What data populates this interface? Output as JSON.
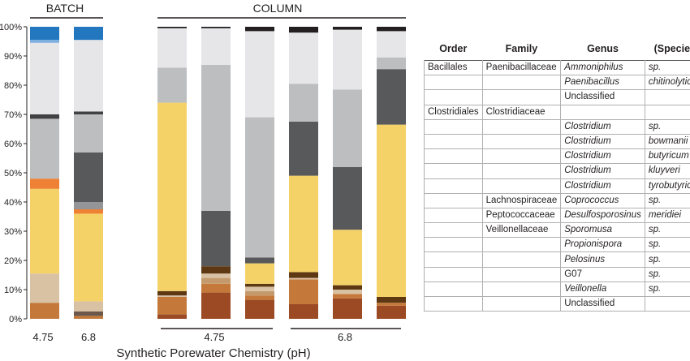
{
  "chart_data": {
    "type": "bar",
    "stacked": true,
    "xlabel": "Synthetic Porewater Chemistry (pH)",
    "ylim": [
      0,
      100
    ],
    "y_ticks": [
      "0%",
      "10%",
      "20%",
      "30%",
      "40%",
      "50%",
      "60%",
      "70%",
      "80%",
      "90%",
      "100%"
    ],
    "groups": [
      {
        "label": "BATCH",
        "sub_labels": [
          {
            "text": "4.75"
          },
          {
            "text": "6.8"
          }
        ]
      },
      {
        "label": "COLUMN",
        "sub_labels": [
          {
            "text": "4.75"
          },
          {
            "text": "6.8"
          }
        ]
      }
    ],
    "taxa": [
      {
        "order": "Bacillales",
        "family": "Paenibacillaceae",
        "genus": "Ammoniphilus",
        "species": "sp.",
        "color": "#2277bf",
        "genus_italic": true,
        "species_italic": true
      },
      {
        "order": "",
        "family": "",
        "genus": "Paenibacillus",
        "species": "chitinolyticus",
        "color": "#7fb0e0",
        "genus_italic": true,
        "species_italic": true
      },
      {
        "order": "",
        "family": "",
        "genus": "Unclassified",
        "species": "",
        "color": "#231f20",
        "genus_italic": false,
        "species_italic": false
      },
      {
        "order": "Clostridiales",
        "family": "Clostridiaceae",
        "genus": "",
        "species": "",
        "color": "",
        "genus_italic": false,
        "species_italic": false
      },
      {
        "order": "",
        "family": "",
        "genus": "Clostridium",
        "species": "sp.",
        "color": "#e6e6e8",
        "genus_italic": true,
        "species_italic": true
      },
      {
        "order": "",
        "family": "",
        "genus": "Clostridium",
        "species": "bowmanii",
        "color": "#414042",
        "genus_italic": true,
        "species_italic": true
      },
      {
        "order": "",
        "family": "",
        "genus": "Clostridium",
        "species": "butyricum",
        "color": "#bcbec0",
        "genus_italic": true,
        "species_italic": true
      },
      {
        "order": "",
        "family": "",
        "genus": "Clostridium",
        "species": "kluyveri",
        "color": "#58595b",
        "genus_italic": true,
        "species_italic": true
      },
      {
        "order": "",
        "family": "",
        "genus": "Clostridium",
        "species": "tyrobutyricum",
        "color": "#939598",
        "genus_italic": true,
        "species_italic": true
      },
      {
        "order": "",
        "family": "Lachnospiraceae",
        "genus": "Coprococcus",
        "species": "sp.",
        "color": "#ef8134",
        "genus_italic": true,
        "species_italic": true
      },
      {
        "order": "",
        "family": "Peptococcaceae",
        "genus": "Desulfosporosinus",
        "species": "meridiei",
        "color": "#f5d268",
        "genus_italic": true,
        "species_italic": true
      },
      {
        "order": "",
        "family": "Veillonellaceae",
        "genus": "Sporomusa",
        "species": "sp.",
        "color": "#5e3812",
        "genus_italic": true,
        "species_italic": true
      },
      {
        "order": "",
        "family": "",
        "genus": "Propionispora",
        "species": "sp.",
        "color": "#c49a6c",
        "genus_italic": true,
        "species_italic": true
      },
      {
        "order": "",
        "family": "",
        "genus": "Pelosinus",
        "species": "sp.",
        "color": "#d9c2a4",
        "genus_italic": true,
        "species_italic": true
      },
      {
        "order": "",
        "family": "",
        "genus": "G07",
        "species": "sp.",
        "color": "#6b574b",
        "genus_italic": false,
        "species_italic": true
      },
      {
        "order": "",
        "family": "",
        "genus": "Veillonella",
        "species": "sp.",
        "color": "#c4793a",
        "genus_italic": true,
        "species_italic": true
      },
      {
        "order": "",
        "family": "",
        "genus": "Unclassified",
        "species": "",
        "color": "#9b4a24",
        "genus_italic": false,
        "species_italic": false
      }
    ],
    "bars": [
      {
        "group": "BATCH",
        "pH": "4.75",
        "segments": [
          {
            "color": "#c4793a",
            "value": 5.5
          },
          {
            "color": "#d9c2a4",
            "value": 10
          },
          {
            "color": "#f5d268",
            "value": 29
          },
          {
            "color": "#ef8134",
            "value": 3.5
          },
          {
            "color": "#bcbec0",
            "value": 20.5
          },
          {
            "color": "#414042",
            "value": 1.5
          },
          {
            "color": "#e6e6e8",
            "value": 24.5
          },
          {
            "color": "#7fb0e0",
            "value": 1
          },
          {
            "color": "#2277bf",
            "value": 4.5
          }
        ]
      },
      {
        "group": "BATCH",
        "pH": "6.8",
        "segments": [
          {
            "color": "#c4793a",
            "value": 1
          },
          {
            "color": "#6b574b",
            "value": 1.5
          },
          {
            "color": "#d9c2a4",
            "value": 3.5
          },
          {
            "color": "#f5d268",
            "value": 30
          },
          {
            "color": "#ef8134",
            "value": 1.5
          },
          {
            "color": "#939598",
            "value": 2.5
          },
          {
            "color": "#58595b",
            "value": 17
          },
          {
            "color": "#bcbec0",
            "value": 13
          },
          {
            "color": "#414042",
            "value": 1
          },
          {
            "color": "#e6e6e8",
            "value": 24.5
          },
          {
            "color": "#2277bf",
            "value": 4.5
          }
        ]
      },
      {
        "group": "COLUMN",
        "pH": "4.75",
        "segments": [
          {
            "color": "#9b4a24",
            "value": 1.5
          },
          {
            "color": "#c4793a",
            "value": 6
          },
          {
            "color": "#d9c2a4",
            "value": 0.5
          },
          {
            "color": "#5e3812",
            "value": 1.5
          },
          {
            "color": "#f5d268",
            "value": 64.5
          },
          {
            "color": "#bcbec0",
            "value": 12
          },
          {
            "color": "#e6e6e8",
            "value": 13.5
          },
          {
            "color": "#231f20",
            "value": 0.5
          }
        ]
      },
      {
        "group": "COLUMN",
        "pH": "4.75",
        "segments": [
          {
            "color": "#9b4a24",
            "value": 9
          },
          {
            "color": "#c4793a",
            "value": 3
          },
          {
            "color": "#c49a6c",
            "value": 2
          },
          {
            "color": "#d9c2a4",
            "value": 1.5
          },
          {
            "color": "#5e3812",
            "value": 2.5
          },
          {
            "color": "#58595b",
            "value": 19
          },
          {
            "color": "#bcbec0",
            "value": 50
          },
          {
            "color": "#e6e6e8",
            "value": 12.5
          },
          {
            "color": "#231f20",
            "value": 0.5
          }
        ]
      },
      {
        "group": "COLUMN",
        "pH": "4.75",
        "segments": [
          {
            "color": "#9b4a24",
            "value": 6.5
          },
          {
            "color": "#c4793a",
            "value": 1.5
          },
          {
            "color": "#c49a6c",
            "value": 1.5
          },
          {
            "color": "#d9c2a4",
            "value": 1.5
          },
          {
            "color": "#5e3812",
            "value": 1
          },
          {
            "color": "#f5d268",
            "value": 7
          },
          {
            "color": "#58595b",
            "value": 2
          },
          {
            "color": "#bcbec0",
            "value": 48
          },
          {
            "color": "#e6e6e8",
            "value": 29.5
          },
          {
            "color": "#231f20",
            "value": 1.5
          }
        ]
      },
      {
        "group": "COLUMN",
        "pH": "6.8",
        "segments": [
          {
            "color": "#9b4a24",
            "value": 5
          },
          {
            "color": "#c4793a",
            "value": 8.5
          },
          {
            "color": "#d9c2a4",
            "value": 0.5
          },
          {
            "color": "#5e3812",
            "value": 2
          },
          {
            "color": "#f5d268",
            "value": 33
          },
          {
            "color": "#58595b",
            "value": 18.5
          },
          {
            "color": "#bcbec0",
            "value": 13
          },
          {
            "color": "#e6e6e8",
            "value": 17.5
          },
          {
            "color": "#231f20",
            "value": 2
          }
        ]
      },
      {
        "group": "COLUMN",
        "pH": "6.8",
        "segments": [
          {
            "color": "#9b4a24",
            "value": 7
          },
          {
            "color": "#c4793a",
            "value": 1.5
          },
          {
            "color": "#d9c2a4",
            "value": 1.5
          },
          {
            "color": "#5e3812",
            "value": 1.5
          },
          {
            "color": "#f5d268",
            "value": 19
          },
          {
            "color": "#58595b",
            "value": 21.5
          },
          {
            "color": "#bcbec0",
            "value": 26.5
          },
          {
            "color": "#e6e6e8",
            "value": 20.5
          },
          {
            "color": "#231f20",
            "value": 1
          }
        ]
      },
      {
        "group": "COLUMN",
        "pH": "6.8",
        "segments": [
          {
            "color": "#9b4a24",
            "value": 4.5
          },
          {
            "color": "#c4793a",
            "value": 1
          },
          {
            "color": "#5e3812",
            "value": 2
          },
          {
            "color": "#f5d268",
            "value": 59
          },
          {
            "color": "#58595b",
            "value": 19
          },
          {
            "color": "#bcbec0",
            "value": 4
          },
          {
            "color": "#e6e6e8",
            "value": 9
          },
          {
            "color": "#231f20",
            "value": 1.5
          }
        ]
      }
    ]
  },
  "legend_headers": {
    "order": "Order",
    "family": "Family",
    "genus": "Genus",
    "species": "(Species)"
  }
}
